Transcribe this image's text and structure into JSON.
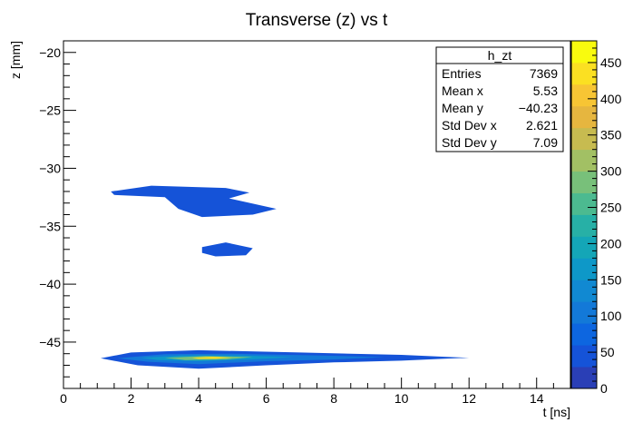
{
  "chart_data": {
    "type": "heatmap",
    "title": "Transverse (z) vs t",
    "xlabel": "t [ns]",
    "ylabel": "z [mm]",
    "xlim": [
      0,
      15
    ],
    "ylim": [
      -49,
      -19
    ],
    "x_ticks": [
      0,
      2,
      4,
      6,
      8,
      10,
      12,
      14
    ],
    "x_tick_labels": [
      "0",
      "2",
      "4",
      "6",
      "8",
      "10",
      "12",
      "14"
    ],
    "y_ticks": [
      -20,
      -25,
      -30,
      -35,
      -40,
      -45
    ],
    "y_tick_labels": [
      "−20",
      "−25",
      "−30",
      "−35",
      "−40",
      "−45"
    ],
    "colorbar": {
      "range": [
        0,
        480
      ],
      "ticks": [
        0,
        50,
        100,
        150,
        200,
        250,
        300,
        350,
        400,
        450
      ],
      "tick_labels": [
        "0",
        "50",
        "100",
        "150",
        "200",
        "250",
        "300",
        "350",
        "400",
        "450"
      ],
      "colors": [
        "#2a3fb6",
        "#1553d8",
        "#0d66e0",
        "#1379d8",
        "#1189d2",
        "#0e98c8",
        "#14a6b7",
        "#27b0a6",
        "#4cba90",
        "#78c07a",
        "#a2c064",
        "#c7bb50",
        "#e6b63f",
        "#f7c534",
        "#fbe022",
        "#f9fb0e"
      ]
    },
    "regions": [
      {
        "level": 30,
        "points": [
          [
            1.4,
            -32.0
          ],
          [
            2.6,
            -31.5
          ],
          [
            4.8,
            -31.7
          ],
          [
            5.5,
            -32.1
          ],
          [
            4.9,
            -32.6
          ],
          [
            6.3,
            -33.5
          ],
          [
            5.6,
            -34.0
          ],
          [
            4.1,
            -34.2
          ],
          [
            3.4,
            -33.5
          ],
          [
            3.0,
            -32.5
          ],
          [
            1.5,
            -32.3
          ]
        ]
      },
      {
        "level": 30,
        "points": [
          [
            4.1,
            -36.8
          ],
          [
            4.8,
            -36.4
          ],
          [
            5.6,
            -36.9
          ],
          [
            5.4,
            -37.5
          ],
          [
            4.5,
            -37.6
          ],
          [
            4.1,
            -37.3
          ]
        ]
      },
      {
        "level": 30,
        "points": [
          [
            1.1,
            -46.4
          ],
          [
            2.0,
            -45.9
          ],
          [
            4.0,
            -45.7
          ],
          [
            7.0,
            -45.9
          ],
          [
            10.0,
            -46.1
          ],
          [
            11.5,
            -46.3
          ],
          [
            12.0,
            -46.35
          ],
          [
            11.2,
            -46.45
          ],
          [
            10.0,
            -46.6
          ],
          [
            8.0,
            -46.75
          ],
          [
            6.0,
            -47.0
          ],
          [
            4.0,
            -47.3
          ],
          [
            2.2,
            -47.0
          ]
        ]
      },
      {
        "level": 90,
        "points": [
          [
            1.6,
            -46.4
          ],
          [
            3.0,
            -46.05
          ],
          [
            5.0,
            -46.0
          ],
          [
            7.5,
            -46.15
          ],
          [
            9.5,
            -46.3
          ],
          [
            8.0,
            -46.5
          ],
          [
            6.0,
            -46.65
          ],
          [
            4.0,
            -46.9
          ],
          [
            2.5,
            -46.7
          ]
        ]
      },
      {
        "level": 170,
        "points": [
          [
            2.3,
            -46.35
          ],
          [
            3.5,
            -46.15
          ],
          [
            5.2,
            -46.15
          ],
          [
            6.8,
            -46.3
          ],
          [
            5.5,
            -46.5
          ],
          [
            4.0,
            -46.65
          ],
          [
            2.8,
            -46.55
          ]
        ]
      },
      {
        "level": 280,
        "points": [
          [
            3.0,
            -46.35
          ],
          [
            4.2,
            -46.2
          ],
          [
            5.6,
            -46.3
          ],
          [
            4.8,
            -46.5
          ],
          [
            3.6,
            -46.55
          ]
        ]
      },
      {
        "level": 420,
        "points": [
          [
            3.8,
            -46.35
          ],
          [
            4.4,
            -46.27
          ],
          [
            5.0,
            -46.33
          ],
          [
            4.5,
            -46.45
          ],
          [
            4.0,
            -46.45
          ]
        ]
      }
    ],
    "stats": {
      "name": "h_zt",
      "rows": [
        {
          "label": "Entries",
          "value": "7369"
        },
        {
          "label": "Mean x",
          "value": "5.53"
        },
        {
          "label": "Mean y",
          "value": "−40.23"
        },
        {
          "label": "Std Dev x",
          "value": "2.621"
        },
        {
          "label": "Std Dev y",
          "value": "7.09"
        }
      ]
    }
  }
}
